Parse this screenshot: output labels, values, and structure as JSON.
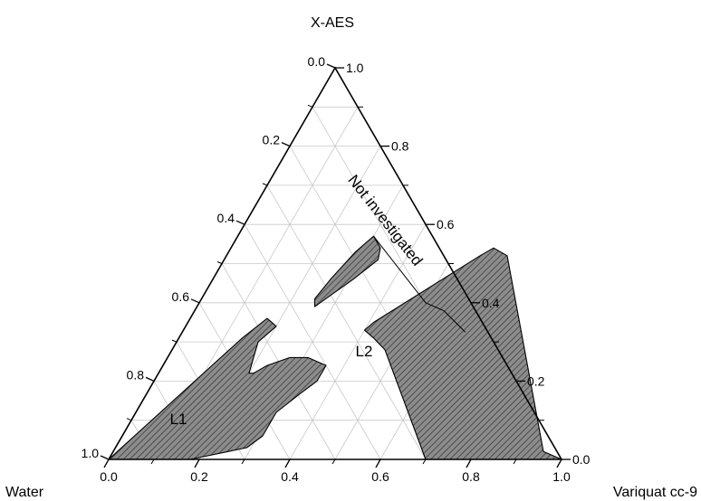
{
  "chart_data": {
    "type": "ternary-phase-diagram",
    "vertices": {
      "top": "X-AES",
      "left": "Water",
      "right": "Variquat cc-9"
    },
    "axes": {
      "left_edge_ticks": [
        "0.0",
        "0.2",
        "0.4",
        "0.6",
        "0.8",
        "1.0"
      ],
      "right_edge_ticks": [
        "1.0",
        "0.8",
        "0.6",
        "0.4",
        "0.2",
        "0.0"
      ],
      "bottom_edge_ticks": [
        "0.0",
        "0.2",
        "0.4",
        "0.6",
        "0.8",
        "1.0"
      ]
    },
    "grid": true,
    "grid_step": 0.1,
    "regions": [
      {
        "name": "L1",
        "fill": "#8c8c8c",
        "hatch": true,
        "points": [
          [
            0.0,
            0.0
          ],
          [
            0.18,
            0.0
          ],
          [
            0.29,
            0.03
          ],
          [
            0.31,
            0.06
          ],
          [
            0.31,
            0.12
          ],
          [
            0.34,
            0.17
          ],
          [
            0.36,
            0.2
          ],
          [
            0.36,
            0.24
          ],
          [
            0.31,
            0.26
          ],
          [
            0.27,
            0.26
          ],
          [
            0.23,
            0.24
          ],
          [
            0.21,
            0.22
          ],
          [
            0.2,
            0.22
          ],
          [
            0.19,
            0.26
          ],
          [
            0.18,
            0.3
          ],
          [
            0.2,
            0.34
          ],
          [
            0.17,
            0.36
          ],
          [
            0.14,
            0.31
          ],
          [
            0.0,
            0.0
          ]
        ]
      },
      {
        "name": "L2",
        "fill": "#8c8c8c",
        "hatch": true,
        "points": [
          [
            0.7,
            0.0
          ],
          [
            1.0,
            0.0
          ],
          [
            0.95,
            0.02
          ],
          [
            0.62,
            0.52
          ],
          [
            0.58,
            0.54
          ],
          [
            0.56,
            0.52
          ],
          [
            0.41,
            0.35
          ],
          [
            0.4,
            0.33
          ],
          [
            0.43,
            0.31
          ],
          [
            0.47,
            0.28
          ],
          [
            0.7,
            0.0
          ]
        ]
      },
      {
        "name": "",
        "fill": "#8c8c8c",
        "hatch": true,
        "points": [
          [
            0.3,
            0.57
          ],
          [
            0.33,
            0.54
          ],
          [
            0.34,
            0.51
          ],
          [
            0.31,
            0.46
          ],
          [
            0.26,
            0.39
          ],
          [
            0.25,
            0.41
          ],
          [
            0.26,
            0.46
          ],
          [
            0.28,
            0.53
          ],
          [
            0.3,
            0.57
          ]
        ]
      }
    ],
    "annotations": [
      {
        "text": "L1"
      },
      {
        "text": "L2"
      },
      {
        "text": "Not investigated"
      }
    ],
    "boundary_line": [
      [
        0.3,
        0.57
      ],
      [
        0.5,
        0.4
      ],
      [
        0.55,
        0.38
      ],
      [
        0.625,
        0.325
      ]
    ]
  }
}
